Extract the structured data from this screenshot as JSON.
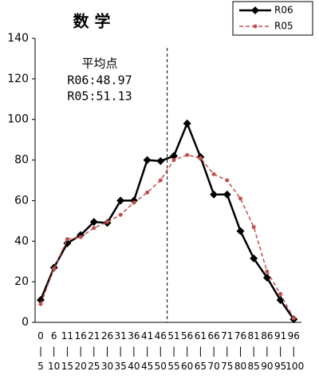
{
  "chart_data": {
    "type": "line",
    "title": "数 学",
    "categories": [
      "0\n|\n5",
      "6\n|\n10",
      "11\n|\n15",
      "16\n|\n20",
      "21\n|\n25",
      "26\n|\n30",
      "31\n|\n35",
      "36\n|\n40",
      "41\n|\n45",
      "46\n|\n50",
      "51\n|\n55",
      "56\n|\n60",
      "61\n|\n65",
      "66\n|\n70",
      "71\n|\n75",
      "76\n|\n80",
      "81\n|\n85",
      "86\n|\n90",
      "91\n|\n95",
      "96\n|\n100"
    ],
    "series": [
      {
        "name": "R06",
        "color": "#000000",
        "values": [
          11,
          27,
          39,
          43,
          49.5,
          49,
          60,
          60,
          80,
          79.5,
          82,
          98,
          81.5,
          63,
          63,
          45,
          31.5,
          22,
          11,
          1.5
        ]
      },
      {
        "name": "R05",
        "color": "#c0504d",
        "values": [
          9,
          26.5,
          41,
          42,
          46.5,
          49.5,
          53,
          59,
          64,
          70,
          80,
          82.5,
          81,
          73,
          70,
          61,
          47,
          25,
          14,
          2
        ]
      }
    ],
    "annotations": [
      "平均点",
      "R06:48.97",
      "R05:51.13"
    ],
    "ylim": [
      0,
      140
    ],
    "yticks": [
      0,
      20,
      40,
      60,
      80,
      100,
      120,
      140
    ],
    "grid": false
  }
}
